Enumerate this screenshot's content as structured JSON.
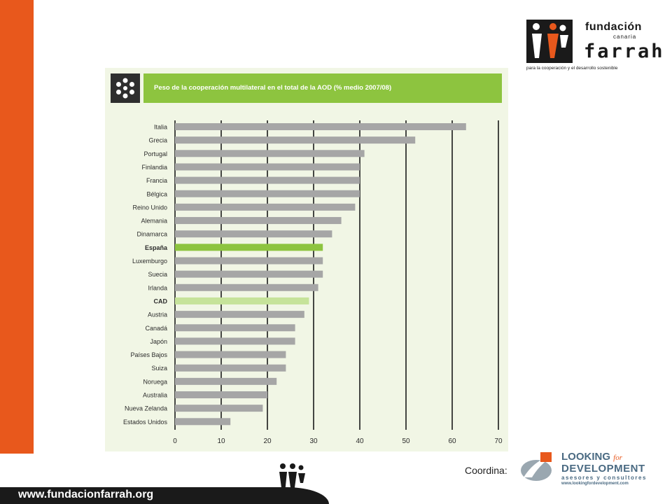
{
  "footer": {
    "url": "www.fundacionfarrah.org"
  },
  "logo_farrah": {
    "line1": "fundación",
    "line2": "canaria",
    "line3": "farrah",
    "tagline": "para la cooperación y el desarrollo sostenible",
    "icon": "farrah-figures-icon"
  },
  "coordina": {
    "label": "Coordina:"
  },
  "logo_lfd": {
    "line1": "LOOKING",
    "line1_for": "for",
    "line2": "DEVELOPMENT",
    "line3": "asesores y consultores",
    "line4": "www.lookingfordevelopment.com",
    "icon": "swoosh-icon"
  },
  "colors": {
    "accent_orange": "#e8581c",
    "header_green": "#8dc43f",
    "bar_grey": "#a6a6a6",
    "bar_highlight": "#8dc43f",
    "bar_light": "#c6e39a"
  },
  "chart_data": {
    "type": "bar",
    "orientation": "horizontal",
    "title": "Peso de la cooperación multilateral en el total de la AOD (% medio 2007/08)",
    "categories": [
      "Italia",
      "Grecia",
      "Portugal",
      "Finlandia",
      "Francia",
      "Bélgica",
      "Reino Unido",
      "Alemania",
      "Dinamarca",
      "España",
      "Luxemburgo",
      "Suecia",
      "Irlanda",
      "CAD",
      "Austria",
      "Canadá",
      "Japón",
      "Países Bajos",
      "Suiza",
      "Noruega",
      "Australia",
      "Nueva Zelanda",
      "Estados Unidos"
    ],
    "values": [
      63,
      52,
      41,
      40,
      40,
      40,
      39,
      36,
      34,
      32,
      32,
      32,
      31,
      29,
      28,
      26,
      26,
      24,
      24,
      22,
      20,
      19,
      12
    ],
    "highlight": {
      "España": "highlight",
      "CAD": "light"
    },
    "bold_labels": [
      "España",
      "CAD"
    ],
    "xlim": [
      0,
      70
    ],
    "xticks": [
      0,
      10,
      20,
      30,
      40,
      50,
      60,
      70
    ],
    "grid": true,
    "header_icon": "asterisk-icon"
  }
}
